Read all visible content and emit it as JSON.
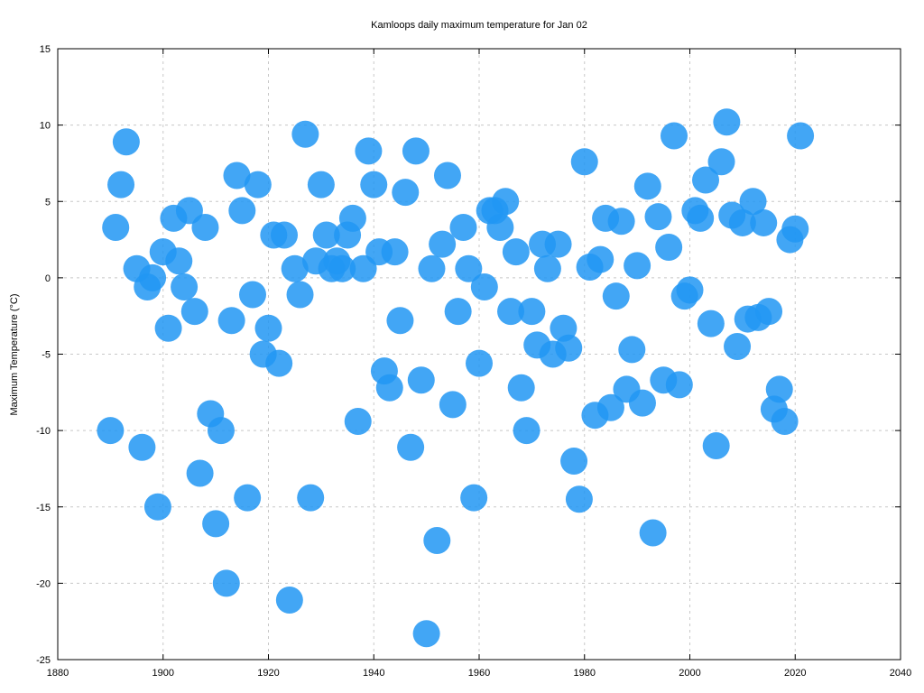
{
  "chart_data": {
    "type": "scatter",
    "title": "Kamloops daily maximum temperature for Jan 02",
    "xlabel": "",
    "ylabel": "Maximum Temperature (°C)",
    "xlim": [
      1880,
      2040
    ],
    "ylim": [
      -25,
      15
    ],
    "xticks": [
      1880,
      1900,
      1920,
      1940,
      1960,
      1980,
      2000,
      2020,
      2040
    ],
    "yticks": [
      -25,
      -20,
      -15,
      -10,
      -5,
      0,
      5,
      10,
      15
    ],
    "grid": true,
    "legend": "none",
    "color": "#2196f3",
    "x": [
      1890,
      1891,
      1892,
      1893,
      1895,
      1896,
      1897,
      1898,
      1899,
      1900,
      1901,
      1902,
      1903,
      1904,
      1905,
      1906,
      1907,
      1908,
      1909,
      1910,
      1911,
      1912,
      1913,
      1914,
      1915,
      1916,
      1917,
      1918,
      1919,
      1920,
      1921,
      1922,
      1923,
      1924,
      1925,
      1926,
      1927,
      1928,
      1929,
      1930,
      1931,
      1932,
      1933,
      1934,
      1935,
      1936,
      1937,
      1938,
      1939,
      1940,
      1941,
      1942,
      1943,
      1944,
      1945,
      1946,
      1947,
      1948,
      1949,
      1950,
      1951,
      1952,
      1953,
      1954,
      1955,
      1956,
      1957,
      1958,
      1959,
      1960,
      1961,
      1962,
      1963,
      1964,
      1965,
      1966,
      1967,
      1968,
      1969,
      1970,
      1971,
      1972,
      1973,
      1974,
      1975,
      1976,
      1977,
      1978,
      1979,
      1980,
      1981,
      1982,
      1983,
      1984,
      1985,
      1986,
      1987,
      1988,
      1989,
      1990,
      1991,
      1992,
      1993,
      1994,
      1995,
      1996,
      1997,
      1998,
      1999,
      2000,
      2001,
      2002,
      2003,
      2004,
      2005,
      2006,
      2007,
      2008,
      2009,
      2010,
      2011,
      2012,
      2013,
      2014,
      2015,
      2016,
      2017,
      2018,
      2019,
      2020,
      2021
    ],
    "y": [
      -10,
      3.3,
      6.1,
      8.9,
      0.6,
      -11.1,
      -0.6,
      0,
      -15,
      1.7,
      -3.3,
      3.9,
      1.1,
      -0.6,
      4.4,
      -2.2,
      -12.8,
      3.3,
      -8.9,
      -16.1,
      -10,
      -20,
      -2.8,
      6.7,
      4.4,
      -14.4,
      -1.1,
      6.1,
      -5,
      -3.3,
      2.8,
      -5.6,
      2.8,
      -21.1,
      0.6,
      -1.1,
      9.4,
      -14.4,
      1.1,
      6.1,
      2.8,
      0.6,
      1.1,
      0.6,
      2.8,
      3.9,
      -9.4,
      0.6,
      8.3,
      6.1,
      1.7,
      -6.1,
      -7.2,
      1.7,
      -2.8,
      5.6,
      -11.1,
      8.3,
      -6.7,
      -23.3,
      0.6,
      -17.2,
      2.2,
      6.7,
      -8.3,
      -2.2,
      3.3,
      0.6,
      -14.4,
      -5.6,
      -0.6,
      4.4,
      4.4,
      3.3,
      5,
      -2.2,
      1.7,
      -7.2,
      -10,
      -2.2,
      -4.4,
      2.2,
      0.6,
      -5,
      2.2,
      -3.3,
      -4.6,
      -12,
      -14.5,
      7.6,
      0.7,
      -9,
      1.2,
      3.9,
      -8.5,
      -1.2,
      3.7,
      -7.3,
      -4.7,
      0.8,
      -8.2,
      6,
      -16.7,
      4,
      -6.7,
      2,
      9.3,
      -7,
      -1.2,
      -0.8,
      4.4,
      3.9,
      6.4,
      -3,
      -11,
      7.6,
      10.2,
      4.1,
      -4.5,
      3.6,
      -2.7,
      5,
      -2.6,
      3.6,
      -2.2,
      -8.6,
      -7.3,
      -9.4,
      2.5,
      3.2,
      9.3
    ]
  }
}
